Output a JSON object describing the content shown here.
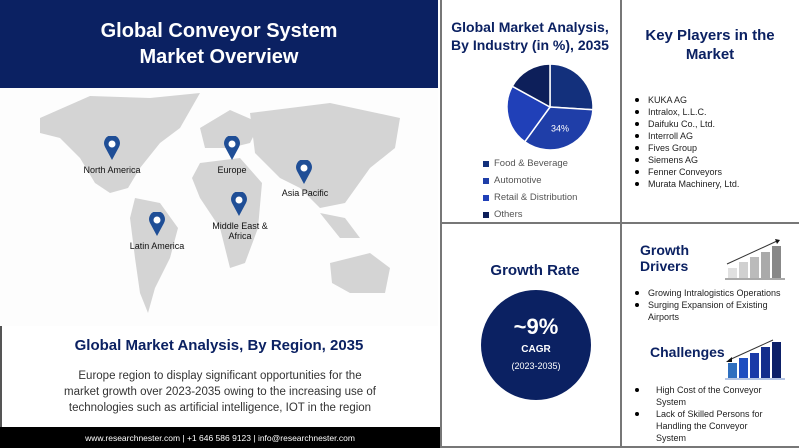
{
  "header": {
    "title": "Global Conveyor System Market Overview"
  },
  "map": {
    "regions": [
      {
        "label": "North America"
      },
      {
        "label": "Europe"
      },
      {
        "label": "Asia Pacific"
      },
      {
        "label": "Middle East & Africa"
      },
      {
        "label": "Latin America"
      }
    ],
    "pin_color": "#1f4e96"
  },
  "region": {
    "title": "Global Market Analysis, By Region, 2035",
    "text": "Europe region to display significant opportunities for the market growth over 2023-2035  owing to the increasing use of technologies such as artificial intelligence, IOT  in the region"
  },
  "footer": {
    "text": "www.researchnester.com  | +1 646 586 9123 | info@researchnester.com"
  },
  "industry": {
    "title": "Global Market Analysis, By Industry (in %), 2035",
    "chart_data": {
      "type": "pie",
      "slices": [
        {
          "name": "Food & Beverage",
          "value": 26,
          "color": "#13307c"
        },
        {
          "name": "Automotive",
          "value": 34,
          "color": "#1f3ea8",
          "label": "34%"
        },
        {
          "name": "Retail & Distribution",
          "value": 23,
          "color": "#2040b8"
        },
        {
          "name": "Others",
          "value": 17,
          "color": "#0d1f5a"
        }
      ]
    }
  },
  "players": {
    "title": "Key Players in the Market",
    "items": [
      "KUKA AG",
      "Intralox, L.L.C.",
      "Daifuku Co., Ltd.",
      "Interroll AG",
      "Fives Group",
      "Siemens AG",
      "Fenner Conveyors",
      "Murata Machinery, Ltd."
    ]
  },
  "growth": {
    "title": "Growth Rate",
    "value": "~9%",
    "label": "CAGR",
    "period": "(2023-2035)"
  },
  "drivers": {
    "title": "Growth Drivers",
    "items": [
      "Growing Intralogistics Operations",
      "Surging Expansion of Existing Airports"
    ]
  },
  "challenges": {
    "title": "Challenges",
    "items": [
      "High Cost of the Conveyor System",
      "Lack of Skilled Persons for Handling the Conveyor System"
    ]
  }
}
